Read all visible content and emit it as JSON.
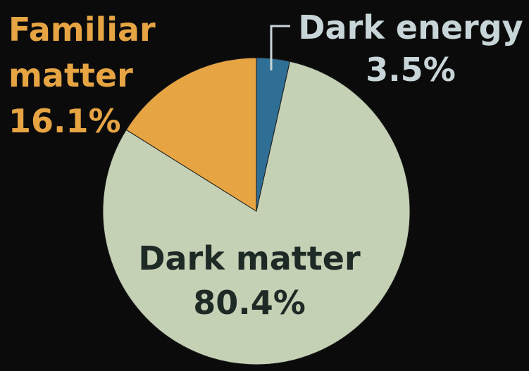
{
  "chart_data": {
    "type": "pie",
    "slices": [
      {
        "name_lines": [
          "Dark energy"
        ],
        "value": 3.5,
        "value_label": "3.5%",
        "color": "#2f6e95",
        "label_color": "#c8d5d8"
      },
      {
        "name_lines": [
          "Dark matter"
        ],
        "value": 80.4,
        "value_label": "80.4%",
        "color": "#c5d1b5",
        "label_color": "#1e2a25"
      },
      {
        "name_lines": [
          "Familiar",
          "matter"
        ],
        "value": 16.1,
        "value_label": "16.1%",
        "color": "#e6a443",
        "label_color": "#e6a443"
      }
    ],
    "start": "12 o'clock",
    "direction": "clockwise"
  }
}
